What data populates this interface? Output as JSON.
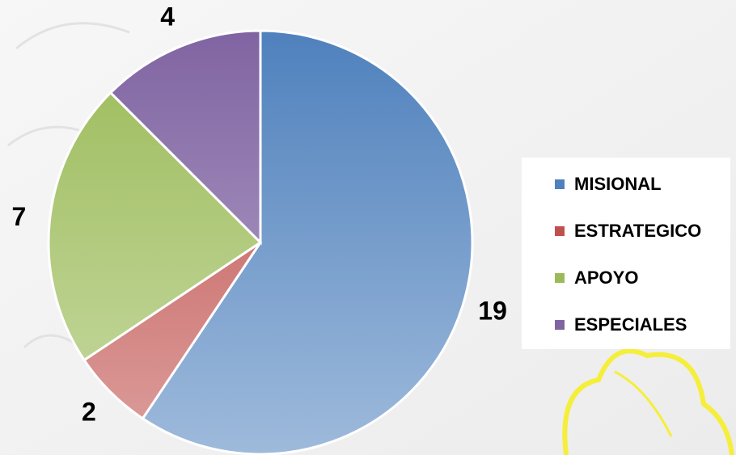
{
  "chart_data": {
    "type": "pie",
    "categories": [
      "MISIONAL",
      "ESTRATEGICO",
      "APOYO",
      "ESPECIALES"
    ],
    "series": [
      {
        "values": [
          19,
          2,
          7,
          4
        ]
      }
    ],
    "colors": [
      "#4f81bd",
      "#c0504d",
      "#9bbb59",
      "#8064a2"
    ],
    "legend": "right"
  }
}
